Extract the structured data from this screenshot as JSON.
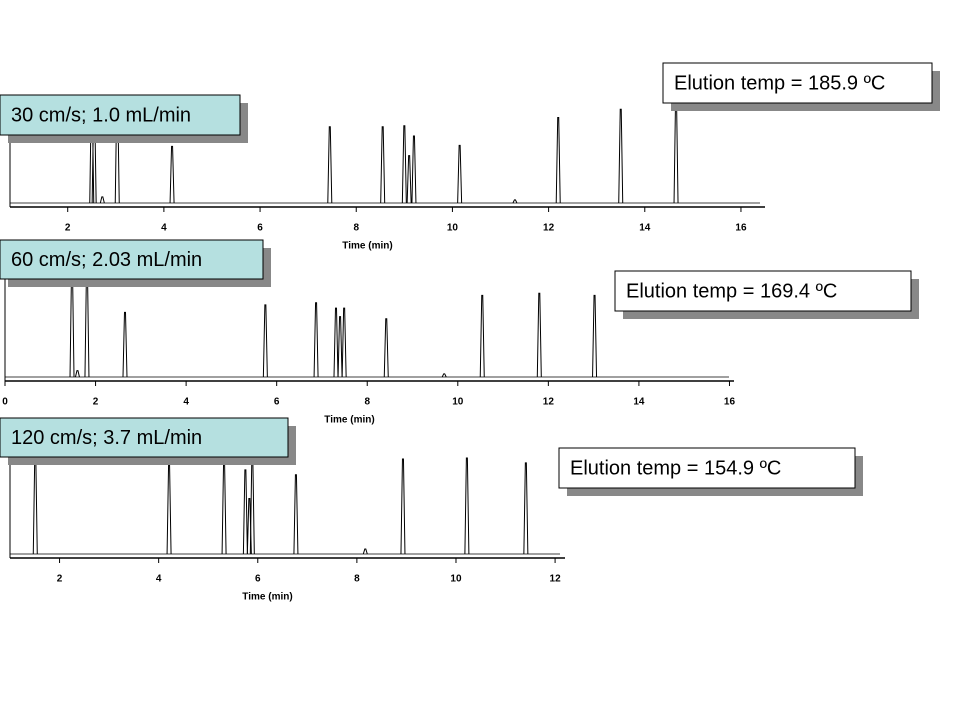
{
  "chart_data": [
    {
      "type": "peaks",
      "label": "30 cm/s; 1.0 mL/min",
      "annotation": "Elution temp = 185.9 ºC",
      "xlabel": "Time (min)",
      "xlim": [
        0.8,
        16.5
      ],
      "xticks": [
        2,
        4,
        6,
        8,
        10,
        12,
        14,
        16
      ],
      "ylim": [
        0,
        100
      ],
      "x": [
        2.5,
        2.55,
        2.72,
        3.03,
        4.17,
        7.45,
        8.55,
        9.0,
        9.1,
        9.2,
        10.15,
        11.3,
        12.2,
        13.5,
        14.65
      ],
      "values": [
        100,
        95,
        6,
        100,
        55,
        74,
        74,
        75,
        46,
        65,
        56,
        3,
        83,
        91,
        100
      ]
    },
    {
      "type": "peaks",
      "label": "60 cm/s; 2.03 mL/min",
      "annotation": "Elution temp = 169.4 ºC",
      "xlabel": "Time (min)",
      "xlim": [
        0,
        16.1
      ],
      "xticks": [
        0,
        2,
        4,
        6,
        8,
        10,
        12,
        14,
        16
      ],
      "ylim": [
        0,
        100
      ],
      "x": [
        1.48,
        1.6,
        1.81,
        2.65,
        5.75,
        6.87,
        7.31,
        7.4,
        7.49,
        8.42,
        9.7,
        10.54,
        11.8,
        13.02
      ],
      "values": [
        100,
        6,
        100,
        61,
        68,
        70,
        65,
        57,
        65,
        55,
        3,
        77,
        79,
        77
      ]
    },
    {
      "type": "peaks",
      "label": "120 cm/s; 3.7 mL/min",
      "annotation": "Elution temp = 154.9 ºC",
      "xlabel": "Time (min)",
      "xlim": [
        1,
        12.2
      ],
      "xticks": [
        2,
        4,
        6,
        8,
        10,
        12
      ],
      "ylim": [
        0,
        100
      ],
      "x": [
        1.51,
        4.21,
        5.32,
        5.75,
        5.83,
        5.89,
        6.77,
        8.17,
        8.93,
        10.22,
        11.41
      ],
      "values": [
        100,
        90,
        93,
        85,
        56,
        97,
        80,
        5,
        96,
        97,
        92
      ]
    }
  ]
}
